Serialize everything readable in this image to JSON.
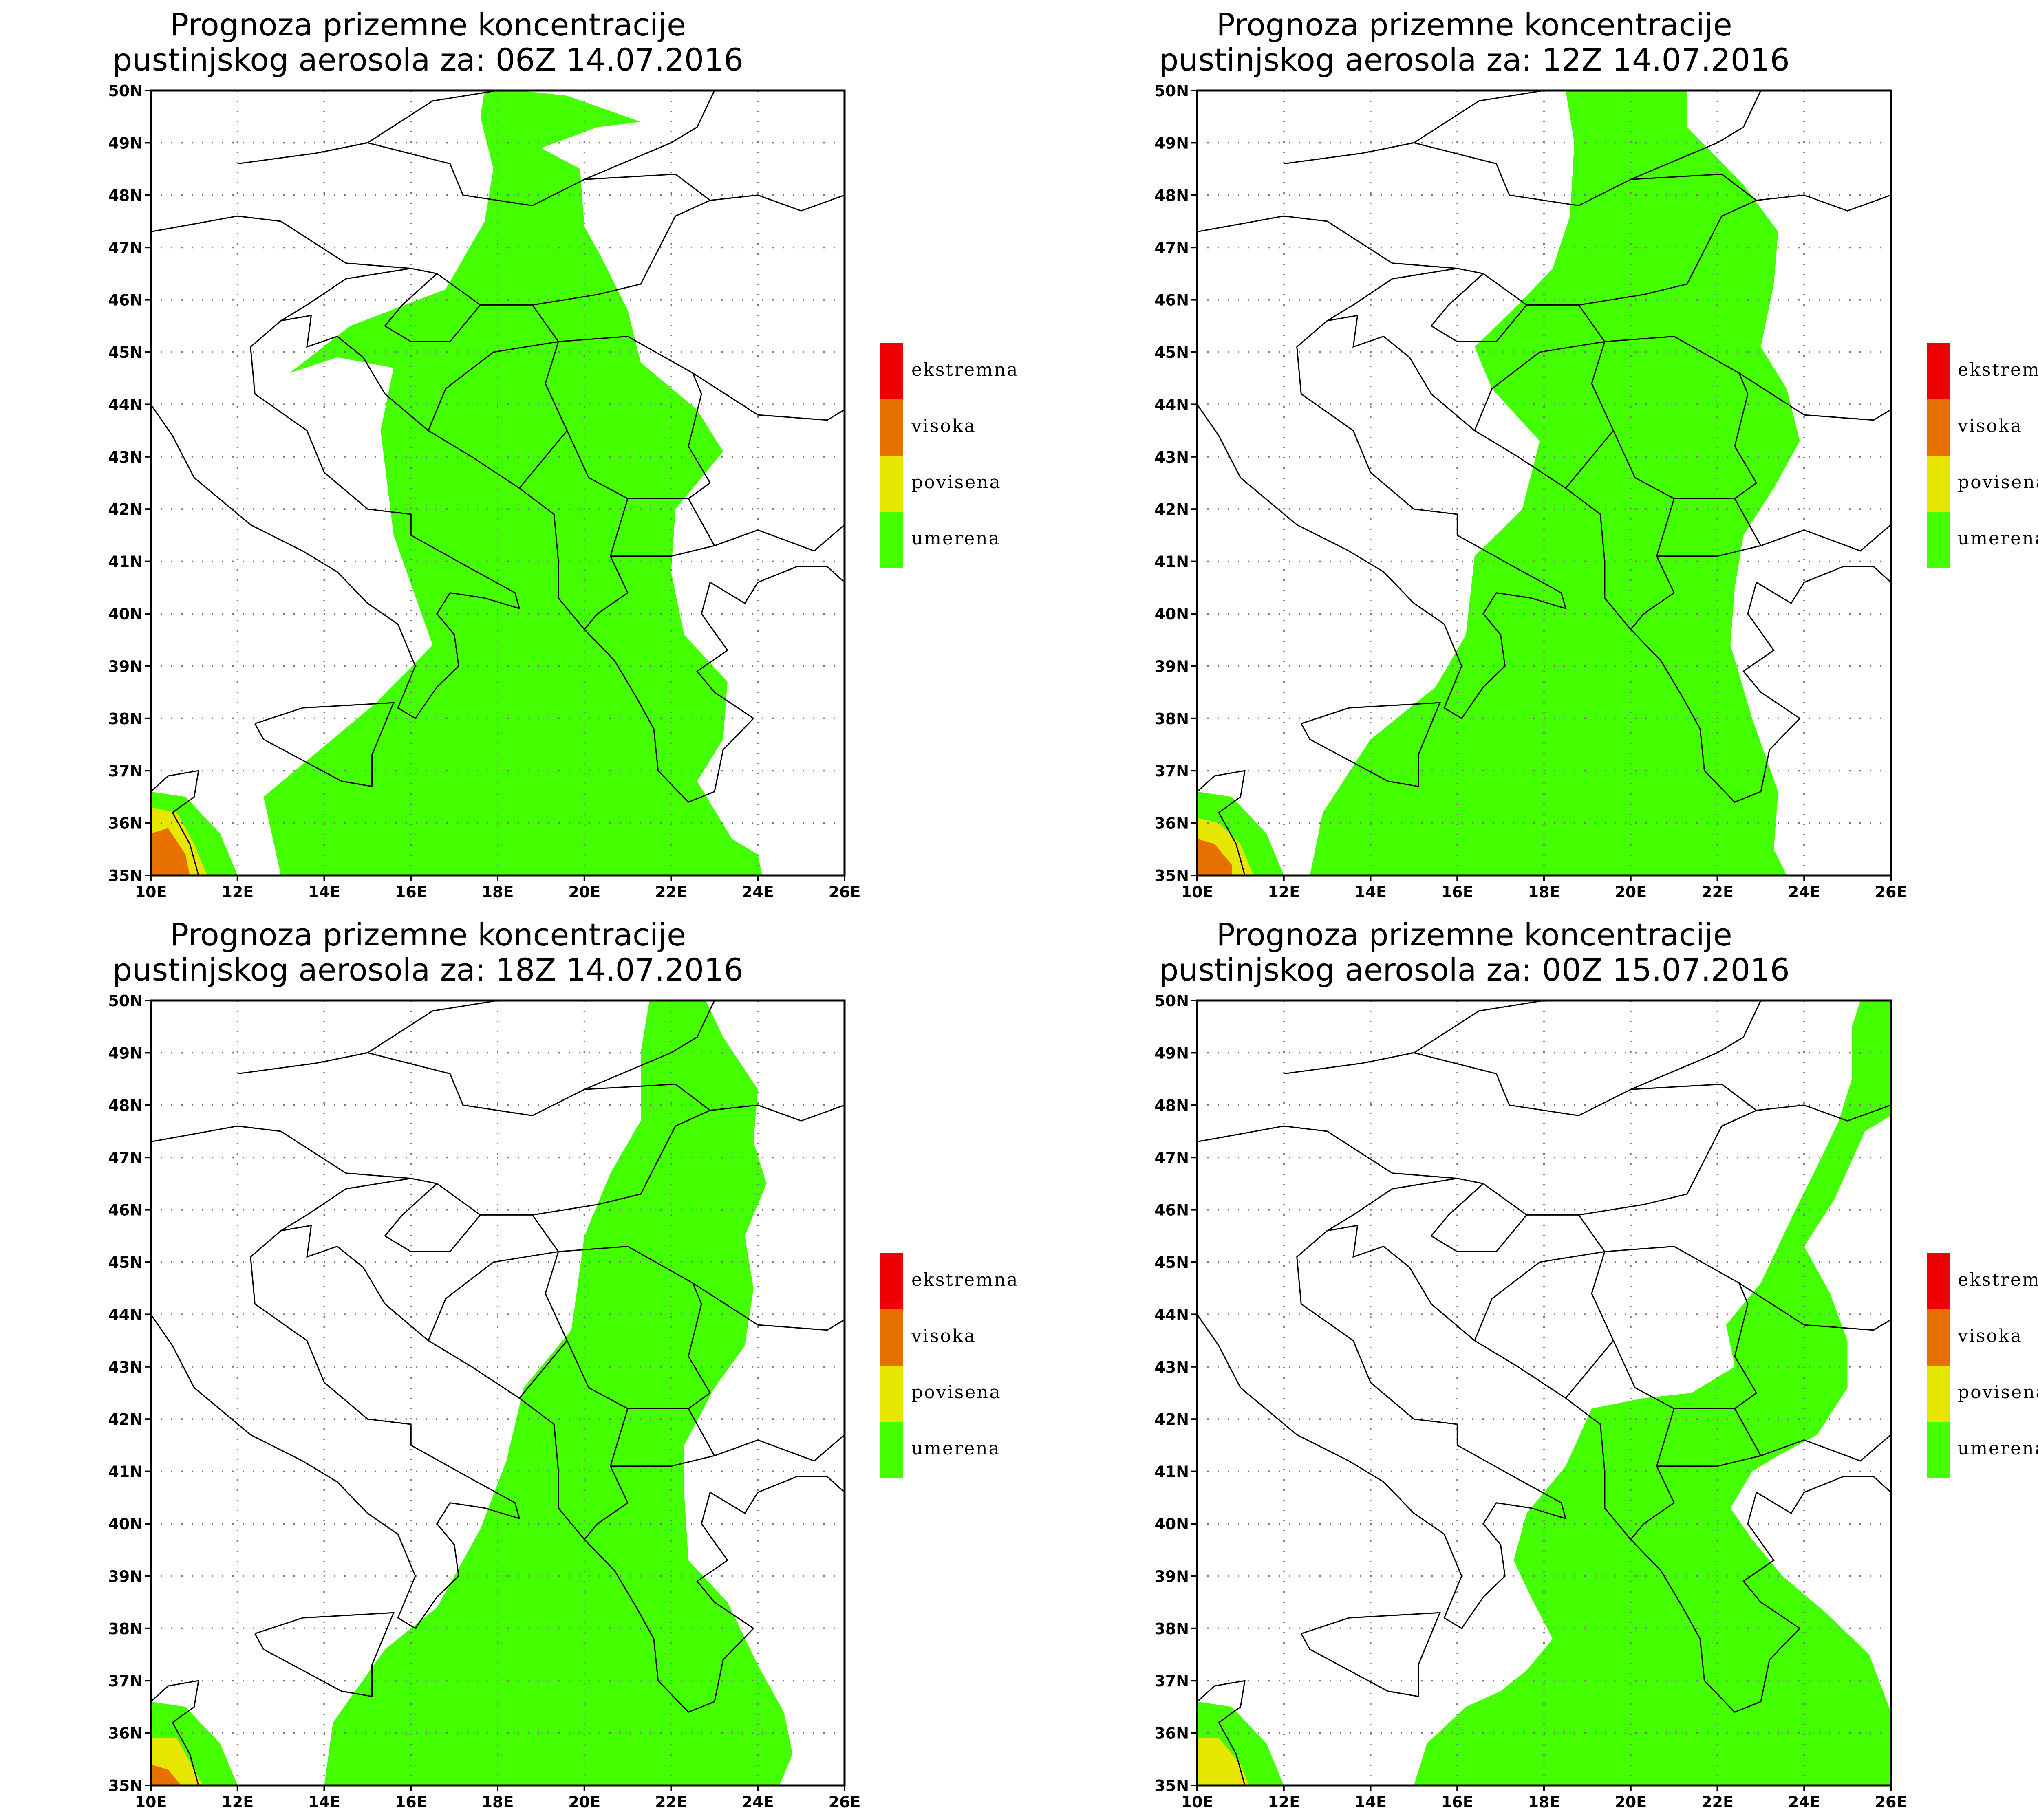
{
  "figure": {
    "panels": [
      {
        "id": "p06",
        "title_line1": "Prognoza prizemne koncentracije",
        "title_line2": "pustinjskog aerosola za: 06Z 14.07.2016"
      },
      {
        "id": "p12",
        "title_line1": "Prognoza prizemne koncentracije",
        "title_line2": "pustinjskog aerosola za: 12Z 14.07.2016"
      },
      {
        "id": "p18",
        "title_line1": "Prognoza prizemne koncentracije",
        "title_line2": "pustinjskog aerosola za: 18Z 14.07.2016"
      },
      {
        "id": "p00",
        "title_line1": "Prognoza prizemne koncentracije",
        "title_line2": "pustinjskog aerosola za: 00Z 15.07.2016"
      }
    ],
    "lat_ticks": [
      "35N",
      "36N",
      "37N",
      "38N",
      "39N",
      "40N",
      "41N",
      "42N",
      "43N",
      "44N",
      "45N",
      "46N",
      "47N",
      "48N",
      "49N",
      "50N"
    ],
    "lon_ticks": [
      "10E",
      "12E",
      "14E",
      "16E",
      "18E",
      "20E",
      "22E",
      "24E",
      "26E"
    ],
    "legend": [
      {
        "label": "ekstremna",
        "color": "#ee0000"
      },
      {
        "label": "visoka",
        "color": "#e87000"
      },
      {
        "label": "povisena",
        "color": "#e6e600"
      },
      {
        "label": "umerena",
        "color": "#44ff00"
      }
    ]
  }
}
